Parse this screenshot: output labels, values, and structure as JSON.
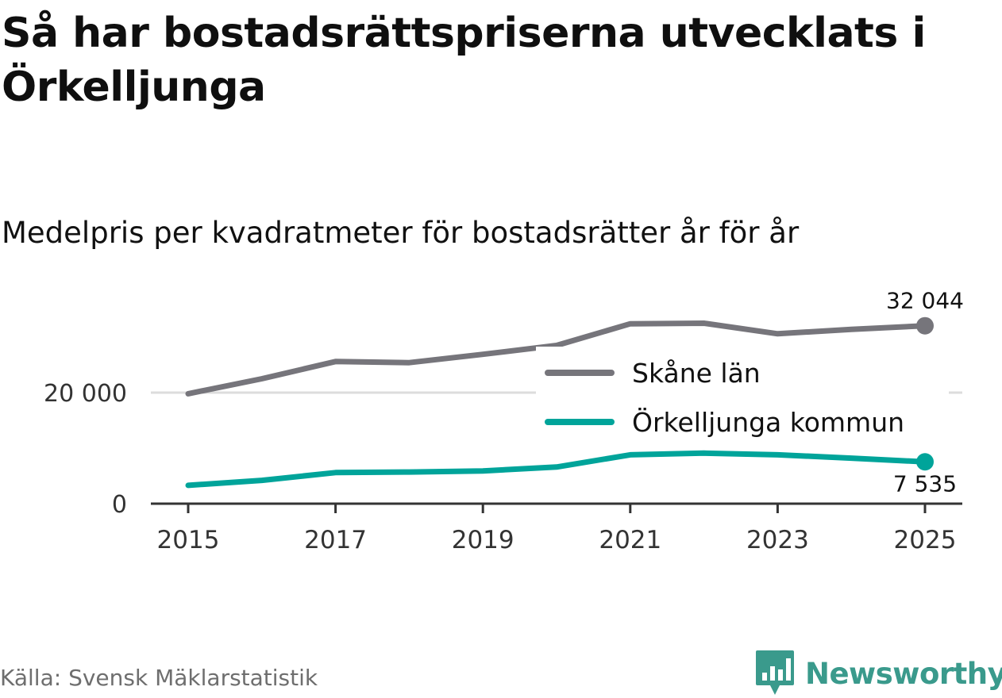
{
  "title": "Så har bostadsrättspriserna utvecklats i Örkelljunga",
  "subtitle": "Medelpris per kvadratmeter för bostadsrätter år för år",
  "source": "Källa: Svensk Mäklarstatistik",
  "brand": {
    "name": "Newsworthy",
    "logo": "newsworthy-chart-logo",
    "color": "#3a9a8c"
  },
  "chart_data": {
    "type": "line",
    "x": [
      2015,
      2016,
      2017,
      2018,
      2019,
      2020,
      2021,
      2022,
      2023,
      2024,
      2025
    ],
    "x_tick_values": [
      2015,
      2017,
      2019,
      2021,
      2023,
      2025
    ],
    "x_tick_labels": [
      "2015",
      "2017",
      "2019",
      "2021",
      "2023",
      "2025"
    ],
    "y_tick_values": [
      0,
      20000
    ],
    "y_tick_labels": [
      "0",
      "20 000"
    ],
    "ylim": [
      0,
      32500
    ],
    "xlim": [
      2014.7,
      2025.3
    ],
    "grid": true,
    "legend_position": "right",
    "series": [
      {
        "name": "Skåne län",
        "color": "#76757b",
        "values": [
          19800,
          22500,
          25600,
          25400,
          26900,
          28500,
          32400,
          32500,
          30600,
          31400,
          32044
        ],
        "end_label": "32 044"
      },
      {
        "name": "Örkelljunga kommun",
        "color": "#00a49a",
        "values": [
          3300,
          4200,
          5600,
          5700,
          5900,
          6600,
          8800,
          9100,
          8800,
          8200,
          7535
        ],
        "end_label": "7 535"
      }
    ]
  }
}
